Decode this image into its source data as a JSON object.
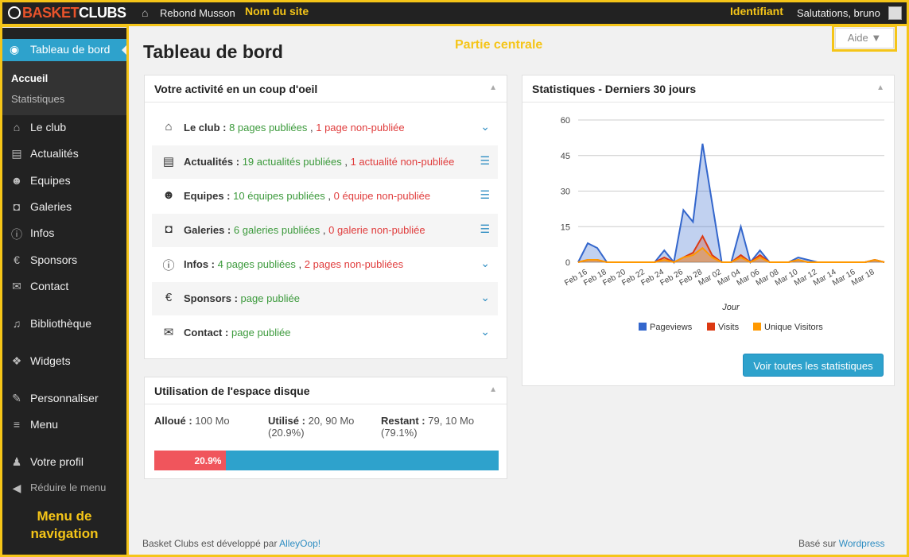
{
  "annotations": {
    "site_name": "Nom du site",
    "identifier": "Identifiant",
    "central": "Partie centrale",
    "nav_line1": "Menu de",
    "nav_line2": "navigation"
  },
  "topbar": {
    "logo_basket": "BASKET",
    "logo_clubs": "CLUBS",
    "site_name": "Rebond Musson",
    "greeting": "Salutations, bruno"
  },
  "sidebar": {
    "active": "Tableau de bord",
    "sub_accueil": "Accueil",
    "sub_stats": "Statistiques",
    "items": [
      {
        "label": "Le club",
        "icon": "home-icon"
      },
      {
        "label": "Actualités",
        "icon": "document-icon"
      },
      {
        "label": "Equipes",
        "icon": "users-icon"
      },
      {
        "label": "Galeries",
        "icon": "camera-icon"
      },
      {
        "label": "Infos",
        "icon": "info-icon"
      },
      {
        "label": "Sponsors",
        "icon": "euro-icon"
      },
      {
        "label": "Contact",
        "icon": "envelope-icon"
      },
      {
        "label": "Bibliothèque",
        "icon": "media-icon"
      },
      {
        "label": "Widgets",
        "icon": "widgets-icon"
      },
      {
        "label": "Personnaliser",
        "icon": "brush-icon"
      },
      {
        "label": "Menu",
        "icon": "menu-icon"
      },
      {
        "label": "Votre profil",
        "icon": "user-icon"
      },
      {
        "label": "Réduire le menu",
        "icon": "collapse-icon"
      }
    ]
  },
  "main": {
    "title": "Tableau de bord",
    "help": "Aide ▼"
  },
  "activity": {
    "title": "Votre activité en un coup d'oeil",
    "rows": [
      {
        "label": "Le club :",
        "green": "8 pages publiées",
        "sep": " , ",
        "red": "1 page non-publiée"
      },
      {
        "label": "Actualités :",
        "green": "19 actualités publiées",
        "sep": " , ",
        "red": "1 actualité non-publiée"
      },
      {
        "label": "Equipes :",
        "green": "10 équipes publiées",
        "sep": " , ",
        "red": "0 équipe non-publiée"
      },
      {
        "label": "Galeries :",
        "green": "6 galeries publiées",
        "sep": " , ",
        "red": "0 galerie non-publiée"
      },
      {
        "label": "Infos :",
        "green": "4 pages publiées",
        "sep": " , ",
        "red": "2 pages non-publiées"
      },
      {
        "label": "Sponsors :",
        "green": "page publiée",
        "sep": "",
        "red": ""
      },
      {
        "label": "Contact :",
        "green": "page publiée",
        "sep": "",
        "red": ""
      }
    ]
  },
  "disk": {
    "title": "Utilisation de l'espace disque",
    "alloc_label": "Alloué :",
    "alloc_val": "100 Mo",
    "used_label": "Utilisé :",
    "used_val": "20, 90 Mo",
    "used_pct": "(20.9%)",
    "rest_label": "Restant :",
    "rest_val": "79, 10 Mo",
    "rest_pct": "(79.1%)",
    "bar_text": "20.9%",
    "used_fraction": 0.209
  },
  "stats": {
    "title": "Statistiques - Derniers 30 jours",
    "button": "Voir toutes les statistiques"
  },
  "chart_data": {
    "type": "area",
    "xlabel": "Jour",
    "ylim": [
      0,
      60
    ],
    "yticks": [
      0,
      15,
      30,
      45,
      60
    ],
    "tick_labels": [
      "Feb 16",
      "Feb 18",
      "Feb 20",
      "Feb 22",
      "Feb 24",
      "Feb 26",
      "Feb 28",
      "Mar 02",
      "Mar 04",
      "Mar 06",
      "Mar 08",
      "Mar 10",
      "Mar 12",
      "Mar 14",
      "Mar 16",
      "Mar 18"
    ],
    "x": [
      "Feb 15",
      "Feb 16",
      "Feb 17",
      "Feb 18",
      "Feb 19",
      "Feb 20",
      "Feb 21",
      "Feb 22",
      "Feb 23",
      "Feb 24",
      "Feb 25",
      "Feb 26",
      "Feb 27",
      "Feb 28",
      "Mar 01",
      "Mar 02",
      "Mar 03",
      "Mar 04",
      "Mar 05",
      "Mar 06",
      "Mar 07",
      "Mar 08",
      "Mar 09",
      "Mar 10",
      "Mar 11",
      "Mar 12",
      "Mar 13",
      "Mar 14",
      "Mar 15",
      "Mar 16",
      "Mar 17",
      "Mar 18",
      "Mar 19"
    ],
    "series": [
      {
        "name": "Pageviews",
        "color": "#3366cc",
        "values": [
          0,
          8,
          6,
          0,
          0,
          0,
          0,
          0,
          0,
          5,
          0,
          22,
          17,
          50,
          25,
          0,
          0,
          15,
          0,
          5,
          0,
          0,
          0,
          2,
          1,
          0,
          0,
          0,
          0,
          0,
          0,
          1,
          0
        ]
      },
      {
        "name": "Visits",
        "color": "#dc3912",
        "values": [
          0,
          1,
          1,
          0,
          0,
          0,
          0,
          0,
          0,
          2,
          0,
          2,
          4,
          11,
          3,
          0,
          0,
          3,
          0,
          3,
          0,
          0,
          0,
          1,
          0,
          0,
          0,
          0,
          0,
          0,
          0,
          1,
          0
        ]
      },
      {
        "name": "Unique Visitors",
        "color": "#ff9900",
        "values": [
          0,
          1,
          1,
          0,
          0,
          0,
          0,
          0,
          0,
          1,
          0,
          2,
          3,
          6,
          2,
          0,
          0,
          2,
          0,
          2,
          0,
          0,
          0,
          1,
          0,
          0,
          0,
          0,
          0,
          0,
          0,
          1,
          0
        ]
      }
    ]
  },
  "footer": {
    "left_text": "Basket Clubs est développé par ",
    "left_link": "AlleyOop!",
    "right_text": "Basé sur ",
    "right_link": "Wordpress"
  }
}
